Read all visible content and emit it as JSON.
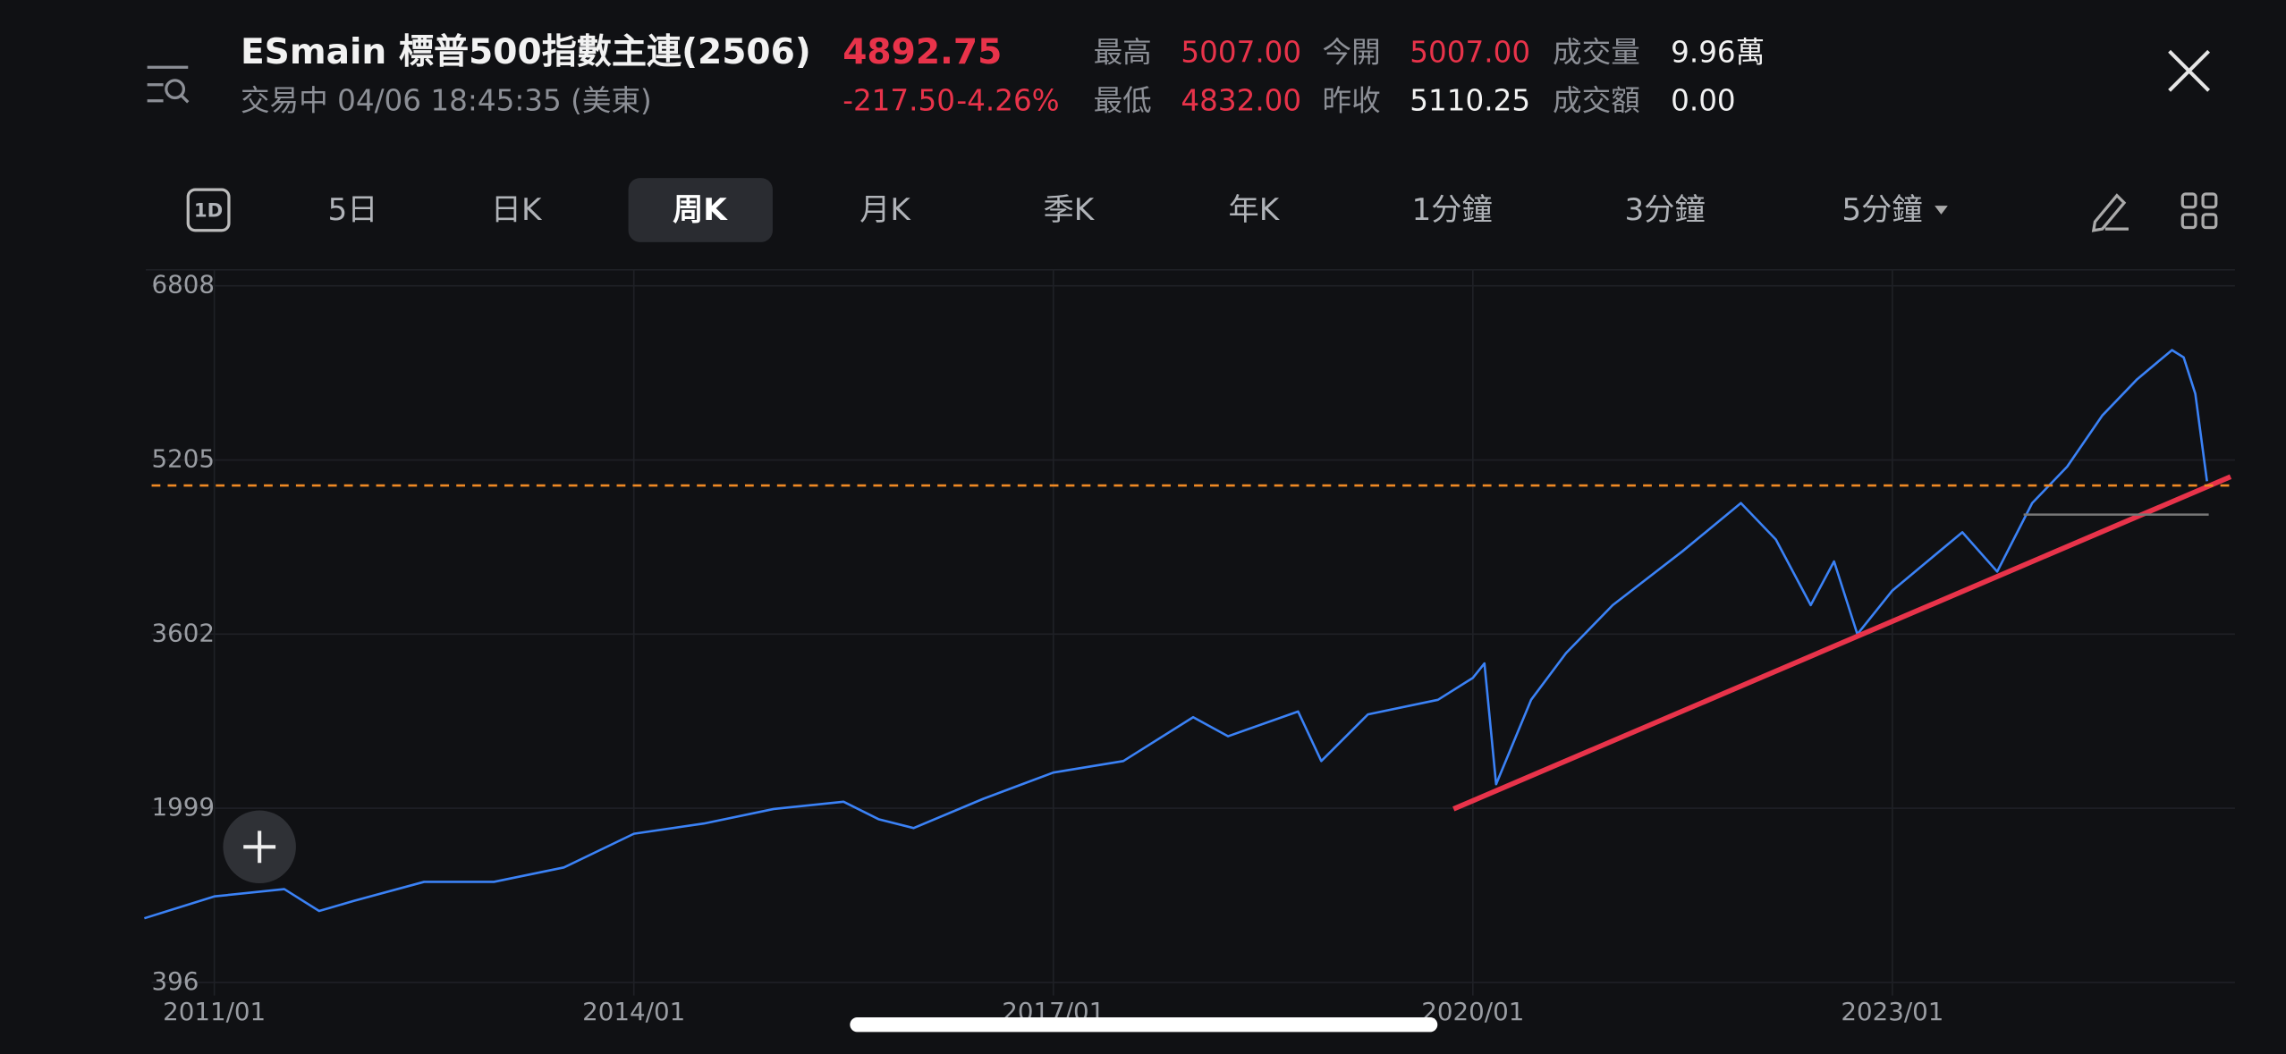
{
  "header": {
    "title": "ESmain  標普500指數主連(2506)",
    "price": "4892.75",
    "change": "-217.50",
    "change_pct": "-4.26%",
    "status": "交易中 04/06 18:45:35 (美東)",
    "stats": [
      {
        "label": "最高",
        "value": "5007.00"
      },
      {
        "label": "今開",
        "value": "5007.00"
      },
      {
        "label": "成交量",
        "value": "9.96萬"
      },
      {
        "label": "最低",
        "value": "4832.00"
      },
      {
        "label": "昨收",
        "value": "5110.25"
      },
      {
        "label": "成交額",
        "value": "0.00"
      }
    ]
  },
  "tabs": [
    "1D",
    "5日",
    "日K",
    "周K",
    "月K",
    "季K",
    "年K",
    "1分鐘",
    "3分鐘",
    "5分鐘"
  ],
  "active_tab": "周K",
  "chart_data": {
    "type": "line",
    "color": "#3b82f6",
    "x": [
      "2010/07",
      "2011/01",
      "2011/07",
      "2011/10",
      "2012/01",
      "2012/07",
      "2013/01",
      "2013/07",
      "2014/01",
      "2014/07",
      "2015/01",
      "2015/07",
      "2015/10",
      "2016/01",
      "2016/07",
      "2017/01",
      "2017/07",
      "2018/01",
      "2018/04",
      "2018/10",
      "2018/12",
      "2019/04",
      "2019/10",
      "2020/01",
      "2020/02",
      "2020/03",
      "2020/06",
      "2020/09",
      "2021/01",
      "2021/07",
      "2021/12",
      "2022/03",
      "2022/06",
      "2022/08",
      "2022/10",
      "2023/01",
      "2023/07",
      "2023/10",
      "2024/01",
      "2024/04",
      "2024/07",
      "2024/10",
      "2025/01",
      "2025/02",
      "2025/03",
      "2025/04"
    ],
    "values": [
      986,
      1187,
      1254,
      1053,
      1147,
      1321,
      1321,
      1455,
      1764,
      1858,
      1992,
      2059,
      1898,
      1817,
      2086,
      2327,
      2434,
      2837,
      2662,
      2890,
      2434,
      2863,
      2997,
      3199,
      3333,
      2220,
      2997,
      3427,
      3869,
      4365,
      4808,
      4473,
      3869,
      4271,
      3601,
      4003,
      4539,
      4178,
      4808,
      5143,
      5613,
      5948,
      6216,
      6149,
      5814,
      5009
    ],
    "ylim": [
      396,
      6808
    ],
    "yticks": [
      396,
      1999,
      3602,
      5205,
      6808
    ],
    "xticks": [
      "2011/01",
      "2014/01",
      "2017/01",
      "2020/01",
      "2023/01"
    ],
    "grid": true
  }
}
